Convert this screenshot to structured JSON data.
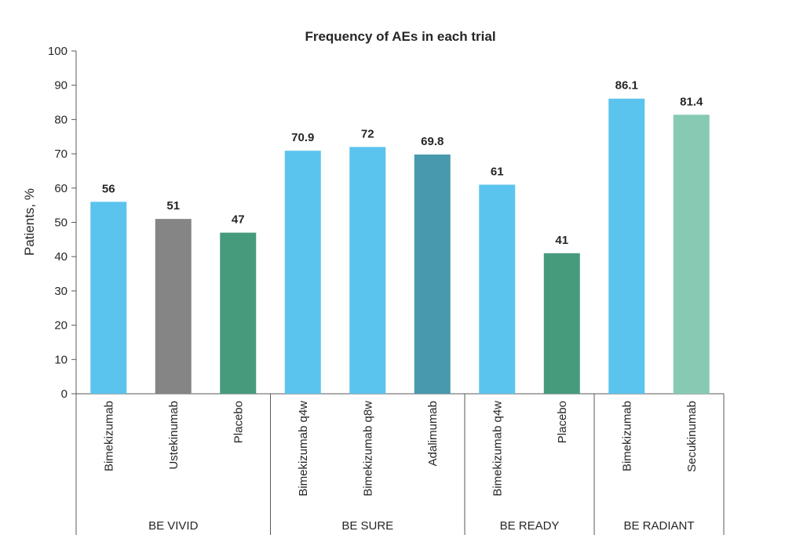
{
  "chart_data": {
    "type": "bar",
    "title": "Frequency of AEs in each trial",
    "ylabel": "Patients, %",
    "xlabel": "",
    "ylim": [
      0,
      100
    ],
    "yticks": [
      0,
      10,
      20,
      30,
      40,
      50,
      60,
      70,
      80,
      90,
      100
    ],
    "grid": false,
    "categories": [
      "Bimekizumab",
      "Ustekinumab",
      "Placebo",
      "Bimekizumab q4w",
      "Bimekizumab q8w",
      "Adalimumab",
      "Bimekizumab q4w",
      "Placebo",
      "Bimekizumab",
      "Secukinumab"
    ],
    "values": [
      56,
      51,
      47,
      70.9,
      72,
      69.8,
      61,
      41,
      86.1,
      81.4
    ],
    "data_labels": [
      "56",
      "51",
      "47",
      "70.9",
      "72",
      "69.8",
      "61",
      "41",
      "86.1",
      "81.4"
    ],
    "colors": [
      "#5bc4ee",
      "#858585",
      "#469b7c",
      "#5bc4ee",
      "#5bc4ee",
      "#4898ae",
      "#5bc4ee",
      "#469b7c",
      "#5bc4ee",
      "#87cab3"
    ],
    "groups": [
      {
        "label": "BE VIVID",
        "size": 3
      },
      {
        "label": "BE SURE",
        "size": 3
      },
      {
        "label": "BE READY",
        "size": 2
      },
      {
        "label": "BE RADIANT",
        "size": 2
      }
    ]
  }
}
